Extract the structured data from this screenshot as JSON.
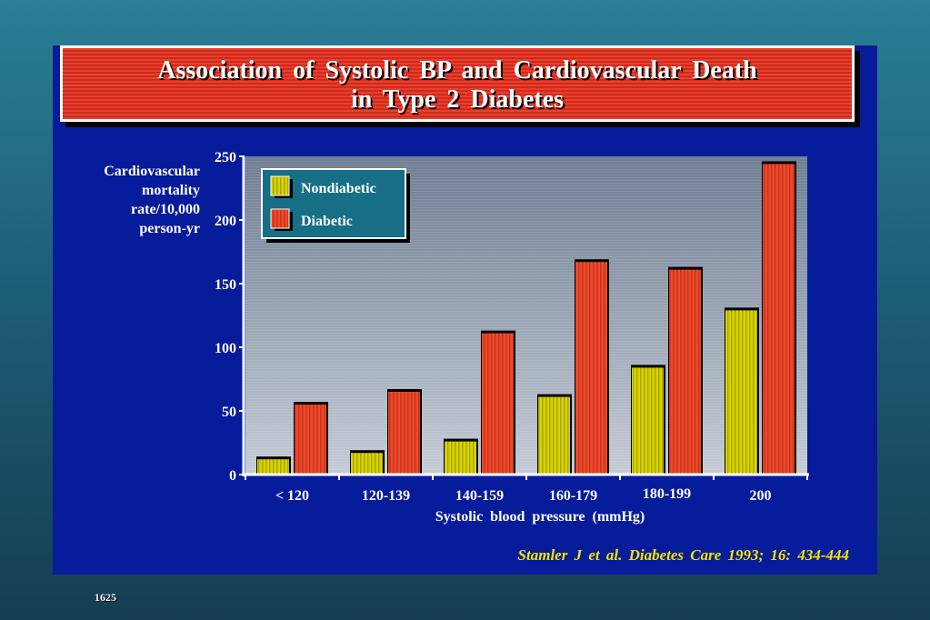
{
  "title_line1": "Association  of  Systolic  BP  and  Cardiovascular  Death",
  "title_line2": "in  Type  2  Diabetes",
  "citation": "Stamler J  et al.  Diabetes  Care  1993; 16: 434-444",
  "slide_number": "1625",
  "colors": {
    "nondiabetic": "#d8d400",
    "diabetic": "#ec4a2a",
    "slide_background": "#071c9a",
    "title_background": "#e03a25"
  },
  "chart_data": {
    "type": "bar",
    "ylabel": "Cardiovascular mortality rate/10,000 person-yr",
    "ylabel_lines": [
      "Cardiovascular",
      "mortality",
      "rate/10,000",
      "person-yr"
    ],
    "xlabel": "Systolic  blood  pressure  (mmHg)",
    "categories": [
      "< 120",
      "120-139",
      "140-159",
      "160-179",
      "180-199",
      "\u0012200"
    ],
    "series": [
      {
        "name": "Nondiabetic",
        "values": [
          12,
          17,
          26,
          61,
          84,
          129
        ]
      },
      {
        "name": "Diabetic",
        "values": [
          55,
          65,
          111,
          167,
          161,
          244
        ]
      }
    ],
    "ylim": [
      0,
      250
    ],
    "yticks": [
      0,
      50,
      100,
      150,
      200,
      250
    ],
    "legend_position": "top-left",
    "grid": false
  }
}
